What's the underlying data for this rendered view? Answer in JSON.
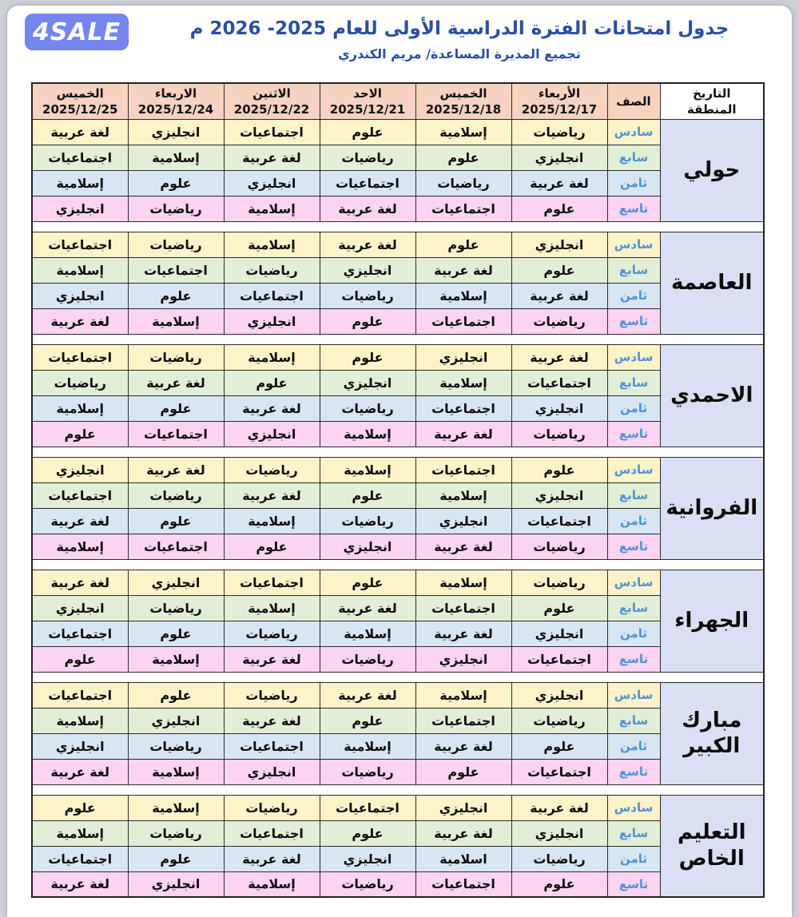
{
  "header": {
    "title": "جدول امتحانات الفترة الدراسية الأولى للعام 2025- 2026 م",
    "subtitle": "تجميع المديرة المساعدة/ مريم الكندري",
    "logo_text": "4SALE"
  },
  "colors": {
    "title_text": "#2b4fa0",
    "logo_bg": "#7585ee",
    "logo_text": "#ffffff",
    "header_row_bg": "#f6d2c0",
    "region_col_bg": "#dbdff3",
    "grade_label_text": "#4f92d6",
    "grade_row_bgs": [
      "#fdf3c9",
      "#e2eed6",
      "#d8e6f3",
      "#fbd4f1"
    ],
    "border": "#2a2a2a"
  },
  "table": {
    "corner_header_line1": "التاريخ",
    "corner_header_line2": "المنطقة",
    "grade_column_header": "الصف",
    "day_headers": [
      {
        "day": "الأربعاء",
        "date": "2025/12/17"
      },
      {
        "day": "الخميس",
        "date": "2025/12/18"
      },
      {
        "day": "الاحد",
        "date": "2025/12/21"
      },
      {
        "day": "الاثنين",
        "date": "2025/12/22"
      },
      {
        "day": "الاربعاء",
        "date": "2025/12/24"
      },
      {
        "day": "الخميس",
        "date": "2025/12/25"
      }
    ],
    "grades": [
      "سادس",
      "سابع",
      "ثامن",
      "تاسع"
    ],
    "regions": [
      {
        "name": "حولي",
        "schedule": [
          [
            "رياضيات",
            "إسلامية",
            "علوم",
            "اجتماعيات",
            "انجليزي",
            "لغة عربية"
          ],
          [
            "انجليزي",
            "علوم",
            "رياضيات",
            "لغة عربية",
            "إسلامية",
            "اجتماعيات"
          ],
          [
            "لغة عربية",
            "رياضيات",
            "اجتماعيات",
            "انجليزي",
            "علوم",
            "إسلامية"
          ],
          [
            "علوم",
            "اجتماعيات",
            "لغة عربية",
            "إسلامية",
            "رياضيات",
            "انجليزي"
          ]
        ]
      },
      {
        "name": "العاصمة",
        "schedule": [
          [
            "انجليزي",
            "علوم",
            "لغة عربية",
            "إسلامية",
            "رياضيات",
            "اجتماعيات"
          ],
          [
            "علوم",
            "لغة عربية",
            "انجليزي",
            "رياضيات",
            "اجتماعيات",
            "إسلامية"
          ],
          [
            "لغة عربية",
            "إسلامية",
            "رياضيات",
            "اجتماعيات",
            "علوم",
            "انجليزي"
          ],
          [
            "رياضيات",
            "اجتماعيات",
            "علوم",
            "انجليزي",
            "إسلامية",
            "لغة عربية"
          ]
        ]
      },
      {
        "name": "الاحمدي",
        "schedule": [
          [
            "لغة عربية",
            "انجليزي",
            "علوم",
            "إسلامية",
            "رياضيات",
            "اجتماعيات"
          ],
          [
            "اجتماعيات",
            "إسلامية",
            "انجليزي",
            "علوم",
            "لغة عربية",
            "رياضيات"
          ],
          [
            "انجليزي",
            "اجتماعيات",
            "رياضيات",
            "لغة عربية",
            "علوم",
            "إسلامية"
          ],
          [
            "رياضيات",
            "لغة عربية",
            "إسلامية",
            "انجليزي",
            "اجتماعيات",
            "علوم"
          ]
        ]
      },
      {
        "name": "الفروانية",
        "schedule": [
          [
            "علوم",
            "اجتماعيات",
            "إسلامية",
            "رياضيات",
            "لغة عربية",
            "انجليزي"
          ],
          [
            "انجليزي",
            "إسلامية",
            "علوم",
            "لغة عربية",
            "رياضيات",
            "اجتماعيات"
          ],
          [
            "اجتماعيات",
            "انجليزي",
            "رياضيات",
            "إسلامية",
            "علوم",
            "لغة عربية"
          ],
          [
            "رياضيات",
            "لغة عربية",
            "انجليزي",
            "علوم",
            "اجتماعيات",
            "إسلامية"
          ]
        ]
      },
      {
        "name": "الجهراء",
        "schedule": [
          [
            "رياضيات",
            "إسلامية",
            "علوم",
            "اجتماعيات",
            "انجليزي",
            "لغة عربية"
          ],
          [
            "علوم",
            "اجتماعيات",
            "لغة عربية",
            "إسلامية",
            "رياضيات",
            "انجليزي"
          ],
          [
            "انجليزي",
            "لغة عربية",
            "إسلامية",
            "رياضيات",
            "علوم",
            "اجتماعيات"
          ],
          [
            "اجتماعيات",
            "انجليزي",
            "رياضيات",
            "لغة عربية",
            "إسلامية",
            "علوم"
          ]
        ]
      },
      {
        "name": "مبارك الكبير",
        "schedule": [
          [
            "انجليزي",
            "إسلامية",
            "لغة عربية",
            "رياضيات",
            "علوم",
            "اجتماعيات"
          ],
          [
            "رياضيات",
            "اجتماعيات",
            "علوم",
            "لغة عربية",
            "انجليزي",
            "إسلامية"
          ],
          [
            "علوم",
            "لغة عربية",
            "إسلامية",
            "اجتماعيات",
            "رياضيات",
            "انجليزي"
          ],
          [
            "اجتماعيات",
            "علوم",
            "رياضيات",
            "انجليزي",
            "إسلامية",
            "لغة عربية"
          ]
        ]
      },
      {
        "name": "التعليم الخاص",
        "schedule": [
          [
            "لغة عربية",
            "انجليزي",
            "اجتماعيات",
            "رياضيات",
            "إسلامية",
            "علوم"
          ],
          [
            "انجليزي",
            "لغة عربية",
            "علوم",
            "اجتماعيات",
            "رياضيات",
            "إسلامية"
          ],
          [
            "رياضيات",
            "اسلامية",
            "انجليزي",
            "لغة عربية",
            "علوم",
            "اجتماعيات"
          ],
          [
            "علوم",
            "اجتماعيات",
            "رياضيات",
            "إسلامية",
            "انجليزي",
            "لغة عربية"
          ]
        ]
      }
    ]
  }
}
